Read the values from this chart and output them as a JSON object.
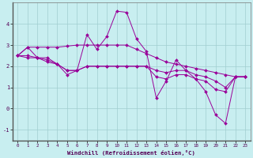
{
  "xlabel": "Windchill (Refroidissement éolien,°C)",
  "background_color": "#c8eef0",
  "grid_color": "#a0cdd0",
  "line_color": "#990099",
  "hours": [
    0,
    1,
    2,
    3,
    4,
    5,
    6,
    7,
    8,
    9,
    10,
    11,
    12,
    13,
    14,
    15,
    16,
    17,
    18,
    19,
    20,
    21,
    22,
    23
  ],
  "line_spike": [
    2.5,
    2.9,
    2.4,
    2.4,
    2.1,
    1.6,
    1.8,
    3.5,
    2.8,
    3.4,
    4.6,
    4.55,
    3.3,
    2.7,
    0.5,
    1.3,
    2.3,
    1.8,
    1.4,
    0.8,
    -0.3,
    -0.7,
    1.5,
    1.5
  ],
  "line_upper": [
    2.5,
    2.9,
    2.9,
    2.9,
    2.9,
    2.95,
    3.0,
    3.0,
    3.0,
    3.0,
    3.0,
    3.0,
    2.8,
    2.6,
    2.4,
    2.2,
    2.1,
    2.0,
    1.9,
    1.8,
    1.7,
    1.6,
    1.5,
    1.5
  ],
  "line_mid1": [
    2.5,
    2.4,
    2.4,
    2.2,
    2.1,
    1.8,
    1.8,
    2.0,
    2.0,
    2.0,
    2.0,
    2.0,
    2.0,
    2.0,
    1.8,
    1.7,
    1.8,
    1.8,
    1.6,
    1.5,
    1.3,
    1.0,
    1.5,
    1.5
  ],
  "line_lower": [
    2.5,
    2.5,
    2.4,
    2.3,
    2.1,
    1.8,
    1.8,
    2.0,
    2.0,
    2.0,
    2.0,
    2.0,
    2.0,
    2.0,
    1.5,
    1.4,
    1.6,
    1.6,
    1.4,
    1.3,
    0.9,
    0.8,
    1.5,
    1.5
  ],
  "ylim": [
    -1.5,
    5.0
  ],
  "yticks": [
    -1,
    0,
    1,
    2,
    3,
    4
  ],
  "xlim": [
    -0.5,
    23.5
  ],
  "figsize": [
    3.2,
    2.0
  ],
  "dpi": 100
}
